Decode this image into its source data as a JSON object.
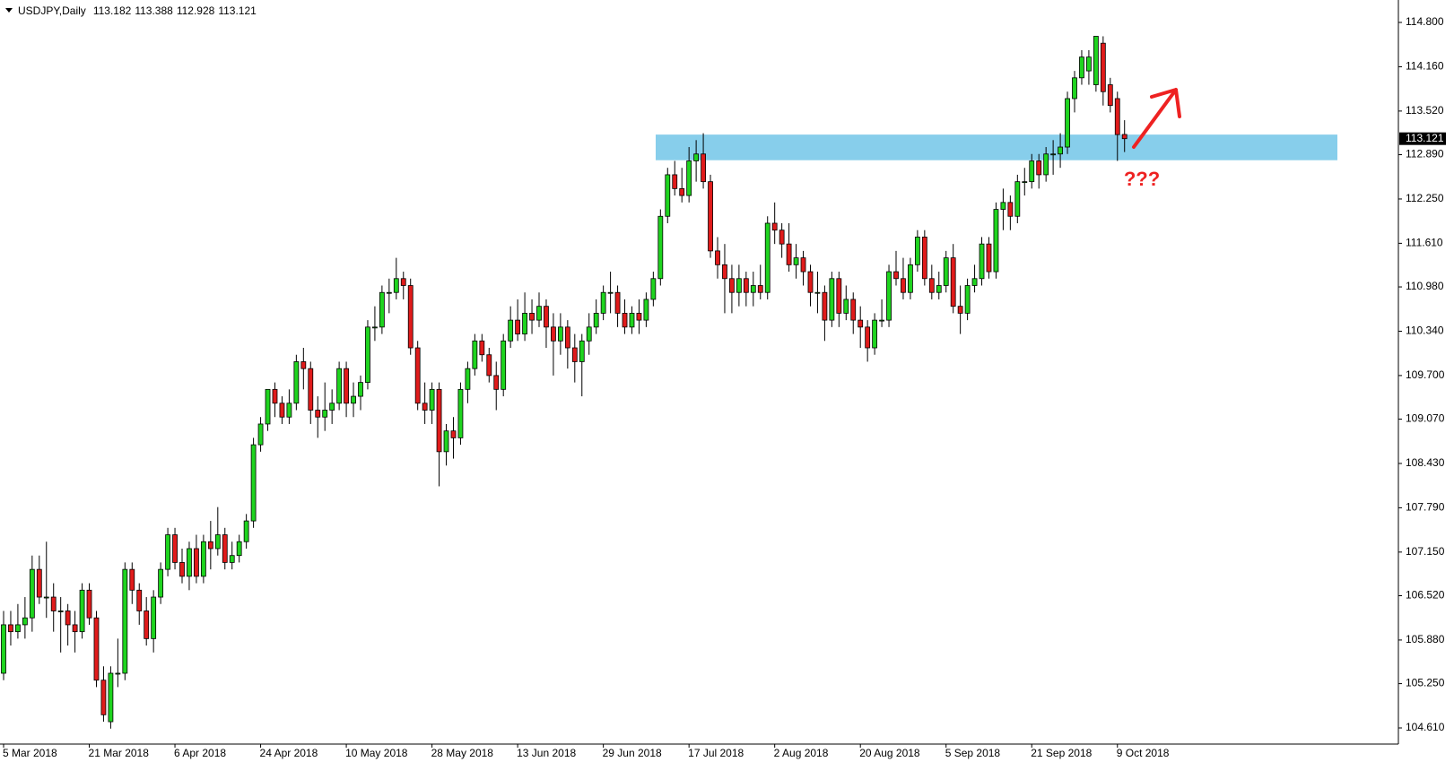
{
  "chart_data": {
    "type": "candlestick",
    "title": "USDJPY,Daily",
    "annotation": "???",
    "bull_color": "#1fd41f",
    "bear_color": "#e01b1b",
    "zone_color": "#87ceeb",
    "resistance_zone": {
      "low": 112.81,
      "high": 113.18
    },
    "ylim": [
      104.377,
      115.124
    ],
    "yticks": [
      {
        "value": 104.61,
        "label": "104.610"
      },
      {
        "value": 105.25,
        "label": "105.250"
      },
      {
        "value": 105.88,
        "label": "105.880"
      },
      {
        "value": 106.52,
        "label": "106.520"
      },
      {
        "value": 107.15,
        "label": "107.150"
      },
      {
        "value": 107.79,
        "label": "107.790"
      },
      {
        "value": 108.43,
        "label": "108.430"
      },
      {
        "value": 109.07,
        "label": "109.070"
      },
      {
        "value": 109.7,
        "label": "109.700"
      },
      {
        "value": 110.34,
        "label": "110.340"
      },
      {
        "value": 110.98,
        "label": "110.980"
      },
      {
        "value": 111.61,
        "label": "111.610"
      },
      {
        "value": 112.25,
        "label": "112.250"
      },
      {
        "value": 112.89,
        "label": "112.890"
      },
      {
        "value": 113.52,
        "label": "113.520"
      },
      {
        "value": 114.16,
        "label": "114.160"
      },
      {
        "value": 114.8,
        "label": "114.800"
      }
    ],
    "categories": [
      "5 Mar 2018",
      null,
      null,
      null,
      null,
      null,
      null,
      null,
      null,
      null,
      null,
      null,
      "21 Mar 2018",
      null,
      null,
      null,
      null,
      null,
      null,
      null,
      null,
      null,
      null,
      null,
      "6 Apr 2018",
      null,
      null,
      null,
      null,
      null,
      null,
      null,
      null,
      null,
      null,
      null,
      "24 Apr 2018",
      null,
      null,
      null,
      null,
      null,
      null,
      null,
      null,
      null,
      null,
      null,
      "10 May 2018",
      null,
      null,
      null,
      null,
      null,
      null,
      null,
      null,
      null,
      null,
      null,
      "28 May 2018",
      null,
      null,
      null,
      null,
      null,
      null,
      null,
      null,
      null,
      null,
      null,
      "13 Jun 2018",
      null,
      null,
      null,
      null,
      null,
      null,
      null,
      null,
      null,
      null,
      null,
      "29 Jun 2018",
      null,
      null,
      null,
      null,
      null,
      null,
      null,
      null,
      null,
      null,
      null,
      "17 Jul 2018",
      null,
      null,
      null,
      null,
      null,
      null,
      null,
      null,
      null,
      null,
      null,
      "2 Aug 2018",
      null,
      null,
      null,
      null,
      null,
      null,
      null,
      null,
      null,
      null,
      null,
      "20 Aug 2018",
      null,
      null,
      null,
      null,
      null,
      null,
      null,
      null,
      null,
      null,
      null,
      "5 Sep 2018",
      null,
      null,
      null,
      null,
      null,
      null,
      null,
      null,
      null,
      null,
      null,
      "21 Sep 2018",
      null,
      null,
      null,
      null,
      null,
      null,
      null,
      null,
      null,
      null,
      null,
      "9 Oct 2018",
      null
    ],
    "ohlc": [
      [
        105.4,
        106.3,
        105.3,
        106.1
      ],
      [
        106.1,
        106.3,
        105.8,
        106.0
      ],
      [
        106.0,
        106.4,
        105.9,
        106.1
      ],
      [
        106.1,
        106.5,
        105.9,
        106.2
      ],
      [
        106.2,
        107.1,
        106.0,
        106.9
      ],
      [
        106.9,
        107.1,
        106.4,
        106.5
      ],
      [
        106.5,
        107.3,
        106.2,
        106.5
      ],
      [
        106.5,
        106.7,
        106.0,
        106.3
      ],
      [
        106.3,
        106.5,
        105.7,
        106.3
      ],
      [
        106.3,
        106.4,
        105.8,
        106.1
      ],
      [
        106.1,
        106.3,
        105.7,
        106.0
      ],
      [
        106.0,
        106.7,
        105.9,
        106.6
      ],
      [
        106.6,
        106.7,
        106.1,
        106.2
      ],
      [
        106.2,
        106.3,
        105.2,
        105.3
      ],
      [
        105.3,
        105.5,
        104.7,
        104.8
      ],
      [
        104.7,
        105.5,
        104.6,
        105.4
      ],
      [
        105.4,
        105.9,
        105.2,
        105.4
      ],
      [
        105.4,
        107.0,
        105.3,
        106.9
      ],
      [
        106.9,
        107.0,
        106.4,
        106.6
      ],
      [
        106.6,
        106.7,
        106.1,
        106.3
      ],
      [
        106.3,
        106.5,
        105.8,
        105.9
      ],
      [
        105.9,
        106.6,
        105.7,
        106.5
      ],
      [
        106.5,
        107.0,
        106.4,
        106.9
      ],
      [
        106.9,
        107.5,
        106.8,
        107.4
      ],
      [
        107.4,
        107.5,
        106.9,
        107.0
      ],
      [
        107.0,
        107.2,
        106.7,
        106.8
      ],
      [
        106.8,
        107.3,
        106.6,
        107.2
      ],
      [
        107.2,
        107.4,
        106.7,
        106.8
      ],
      [
        106.8,
        107.4,
        106.7,
        107.3
      ],
      [
        107.3,
        107.6,
        106.9,
        107.2
      ],
      [
        107.2,
        107.8,
        107.1,
        107.4
      ],
      [
        107.4,
        107.5,
        106.9,
        107.0
      ],
      [
        107.0,
        107.3,
        106.9,
        107.1
      ],
      [
        107.1,
        107.4,
        107.0,
        107.3
      ],
      [
        107.3,
        107.7,
        107.2,
        107.6
      ],
      [
        107.6,
        108.8,
        107.5,
        108.7
      ],
      [
        108.7,
        109.1,
        108.6,
        109.0
      ],
      [
        109.0,
        109.5,
        108.9,
        109.5
      ],
      [
        109.5,
        109.6,
        109.1,
        109.3
      ],
      [
        109.3,
        109.4,
        109.0,
        109.1
      ],
      [
        109.1,
        109.5,
        109.0,
        109.3
      ],
      [
        109.3,
        110.0,
        109.2,
        109.9
      ],
      [
        109.9,
        110.1,
        109.5,
        109.8
      ],
      [
        109.8,
        109.9,
        109.0,
        109.2
      ],
      [
        109.2,
        109.4,
        108.8,
        109.1
      ],
      [
        109.1,
        109.6,
        108.9,
        109.2
      ],
      [
        109.2,
        109.5,
        109.0,
        109.3
      ],
      [
        109.3,
        109.9,
        109.2,
        109.8
      ],
      [
        109.8,
        109.9,
        109.1,
        109.3
      ],
      [
        109.3,
        109.6,
        109.1,
        109.4
      ],
      [
        109.4,
        109.7,
        109.2,
        109.6
      ],
      [
        109.6,
        110.5,
        109.5,
        110.4
      ],
      [
        110.4,
        110.7,
        110.2,
        110.4
      ],
      [
        110.4,
        111.0,
        110.3,
        110.9
      ],
      [
        110.9,
        111.1,
        110.6,
        110.9
      ],
      [
        110.9,
        111.4,
        110.8,
        111.1
      ],
      [
        111.1,
        111.2,
        110.8,
        111.0
      ],
      [
        111.0,
        111.1,
        110.0,
        110.1
      ],
      [
        110.1,
        110.2,
        109.2,
        109.3
      ],
      [
        109.3,
        109.6,
        109.0,
        109.2
      ],
      [
        109.2,
        109.6,
        109.0,
        109.5
      ],
      [
        109.5,
        109.6,
        108.1,
        108.6
      ],
      [
        108.6,
        109.0,
        108.4,
        108.9
      ],
      [
        108.9,
        109.1,
        108.5,
        108.8
      ],
      [
        108.8,
        109.6,
        108.7,
        109.5
      ],
      [
        109.5,
        109.9,
        109.3,
        109.8
      ],
      [
        109.8,
        110.3,
        109.7,
        110.2
      ],
      [
        110.2,
        110.3,
        109.9,
        110.0
      ],
      [
        110.0,
        110.1,
        109.6,
        109.7
      ],
      [
        109.7,
        109.9,
        109.2,
        109.5
      ],
      [
        109.5,
        110.3,
        109.4,
        110.2
      ],
      [
        110.2,
        110.7,
        110.1,
        110.5
      ],
      [
        110.5,
        110.8,
        110.2,
        110.3
      ],
      [
        110.3,
        110.9,
        110.2,
        110.6
      ],
      [
        110.6,
        110.8,
        110.3,
        110.5
      ],
      [
        110.5,
        110.9,
        110.4,
        110.7
      ],
      [
        110.7,
        110.8,
        110.1,
        110.4
      ],
      [
        110.4,
        110.6,
        109.7,
        110.2
      ],
      [
        110.2,
        110.6,
        110.0,
        110.4
      ],
      [
        110.4,
        110.5,
        109.8,
        110.1
      ],
      [
        110.1,
        110.3,
        109.6,
        109.9
      ],
      [
        109.9,
        110.3,
        109.4,
        110.2
      ],
      [
        110.2,
        110.6,
        110.0,
        110.4
      ],
      [
        110.4,
        110.8,
        110.3,
        110.6
      ],
      [
        110.6,
        111.0,
        110.5,
        110.9
      ],
      [
        110.9,
        111.2,
        110.6,
        110.9
      ],
      [
        110.9,
        111.0,
        110.4,
        110.6
      ],
      [
        110.6,
        110.8,
        110.3,
        110.4
      ],
      [
        110.4,
        110.7,
        110.3,
        110.6
      ],
      [
        110.6,
        110.8,
        110.3,
        110.5
      ],
      [
        110.5,
        110.9,
        110.4,
        110.8
      ],
      [
        110.8,
        111.2,
        110.7,
        111.1
      ],
      [
        111.1,
        112.1,
        111.0,
        112.0
      ],
      [
        112.0,
        112.7,
        111.9,
        112.6
      ],
      [
        112.6,
        112.8,
        112.3,
        112.4
      ],
      [
        112.4,
        112.7,
        112.2,
        112.3
      ],
      [
        112.3,
        113.0,
        112.2,
        112.8
      ],
      [
        112.8,
        113.1,
        112.5,
        112.9
      ],
      [
        112.9,
        113.2,
        112.4,
        112.5
      ],
      [
        112.5,
        112.6,
        111.4,
        111.5
      ],
      [
        111.5,
        111.7,
        111.1,
        111.3
      ],
      [
        111.3,
        111.6,
        110.6,
        111.1
      ],
      [
        111.1,
        111.3,
        110.6,
        110.9
      ],
      [
        110.9,
        111.3,
        110.7,
        111.1
      ],
      [
        111.1,
        111.2,
        110.7,
        110.9
      ],
      [
        110.9,
        111.2,
        110.7,
        111.0
      ],
      [
        111.0,
        111.3,
        110.8,
        110.9
      ],
      [
        110.9,
        112.0,
        110.8,
        111.9
      ],
      [
        111.9,
        112.2,
        111.6,
        111.8
      ],
      [
        111.8,
        111.9,
        111.4,
        111.6
      ],
      [
        111.6,
        111.9,
        111.2,
        111.3
      ],
      [
        111.3,
        111.6,
        111.1,
        111.4
      ],
      [
        111.4,
        111.5,
        111.0,
        111.2
      ],
      [
        111.2,
        111.3,
        110.7,
        110.9
      ],
      [
        110.9,
        111.2,
        110.6,
        110.9
      ],
      [
        110.9,
        111.0,
        110.2,
        110.5
      ],
      [
        110.5,
        111.2,
        110.4,
        111.1
      ],
      [
        111.1,
        111.2,
        110.4,
        110.6
      ],
      [
        110.6,
        111.0,
        110.5,
        110.8
      ],
      [
        110.8,
        110.9,
        110.3,
        110.5
      ],
      [
        110.5,
        110.7,
        110.1,
        110.4
      ],
      [
        110.4,
        110.5,
        109.9,
        110.1
      ],
      [
        110.1,
        110.6,
        110.0,
        110.5
      ],
      [
        110.5,
        110.8,
        110.4,
        110.5
      ],
      [
        110.5,
        111.3,
        110.4,
        111.2
      ],
      [
        111.2,
        111.5,
        111.0,
        111.1
      ],
      [
        111.1,
        111.4,
        110.8,
        110.9
      ],
      [
        110.9,
        111.4,
        110.8,
        111.3
      ],
      [
        111.3,
        111.8,
        111.2,
        111.7
      ],
      [
        111.7,
        111.8,
        111.0,
        111.1
      ],
      [
        111.1,
        111.3,
        110.8,
        110.9
      ],
      [
        110.9,
        111.2,
        110.8,
        111.0
      ],
      [
        111.0,
        111.5,
        110.9,
        111.4
      ],
      [
        111.4,
        111.6,
        110.6,
        110.7
      ],
      [
        110.7,
        111.0,
        110.3,
        110.6
      ],
      [
        110.6,
        111.1,
        110.5,
        111.0
      ],
      [
        111.0,
        111.3,
        110.9,
        111.1
      ],
      [
        111.1,
        111.7,
        111.0,
        111.6
      ],
      [
        111.6,
        111.7,
        111.1,
        111.2
      ],
      [
        111.2,
        112.2,
        111.1,
        112.1
      ],
      [
        112.1,
        112.4,
        111.8,
        112.2
      ],
      [
        112.2,
        112.3,
        111.8,
        112.0
      ],
      [
        112.0,
        112.6,
        111.9,
        112.5
      ],
      [
        112.5,
        112.7,
        112.3,
        112.5
      ],
      [
        112.5,
        112.9,
        112.4,
        112.8
      ],
      [
        112.8,
        112.9,
        112.4,
        112.6
      ],
      [
        112.6,
        113.0,
        112.5,
        112.9
      ],
      [
        112.9,
        113.1,
        112.6,
        112.9
      ],
      [
        112.9,
        113.2,
        112.7,
        113.0
      ],
      [
        113.0,
        113.8,
        112.9,
        113.7
      ],
      [
        113.7,
        114.1,
        113.5,
        114.0
      ],
      [
        114.0,
        114.4,
        113.9,
        114.3
      ],
      [
        114.1,
        114.4,
        113.9,
        114.3
      ],
      [
        113.9,
        114.6,
        113.8,
        114.6
      ],
      [
        114.5,
        114.6,
        113.6,
        113.8
      ],
      [
        113.9,
        114.0,
        113.5,
        113.6
      ],
      [
        113.7,
        113.8,
        112.8,
        113.18
      ],
      [
        113.182,
        113.388,
        112.928,
        113.121
      ]
    ]
  }
}
